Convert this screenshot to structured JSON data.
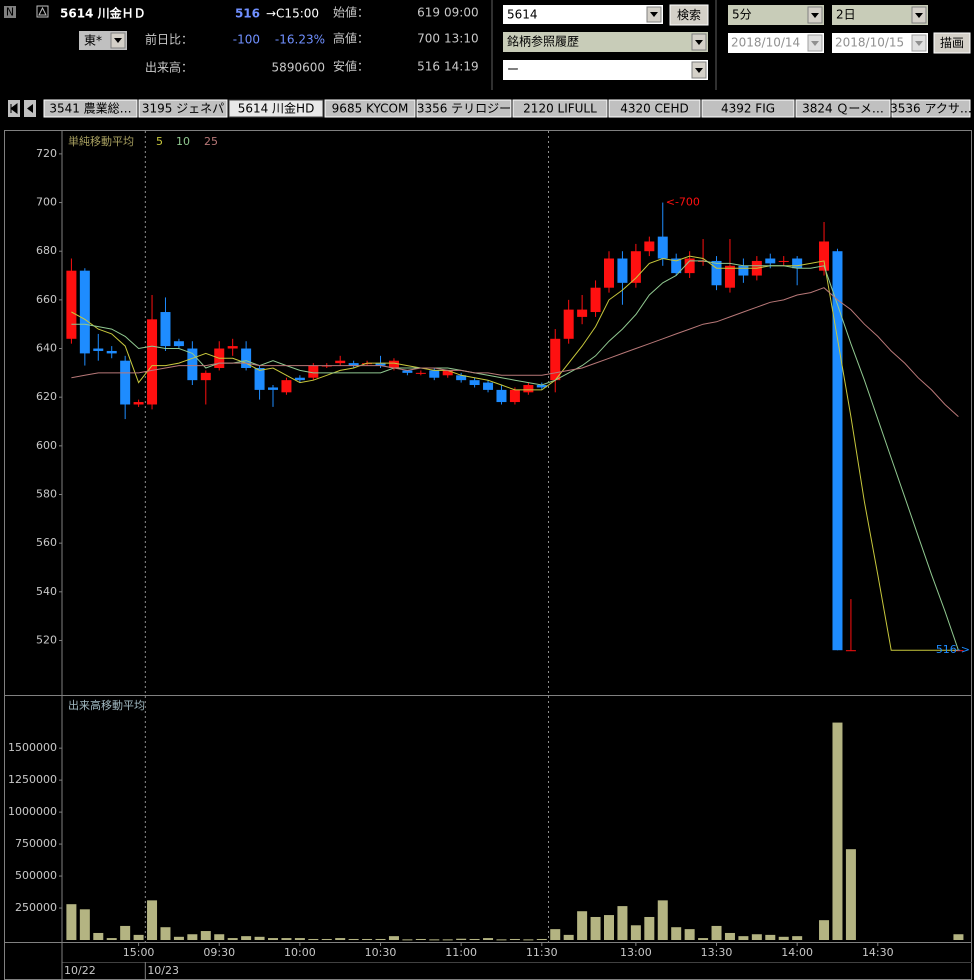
{
  "header": {
    "market_icon": "N",
    "title": "5614 川金ＨＤ",
    "price": 516,
    "price_time": "→C15:00",
    "exchange": "東*",
    "change_label": "前日比：",
    "change": -100,
    "change_pct": "-16.23%",
    "volume_label": "出来高：",
    "volume": 5890600,
    "open_label": "始値：",
    "open": 619,
    "open_time": "09:00",
    "high_label": "高値：",
    "high": 700,
    "high_time": "13:10",
    "low_label": "安値：",
    "low": 516,
    "low_time": "14:19"
  },
  "controls": {
    "code": "5614",
    "search": "検索",
    "history": "銘柄参照履歴",
    "sub": "ー",
    "interval": "5分",
    "span": "2日",
    "from": "2018/10/14",
    "to": "2018/10/15",
    "draw": "描画"
  },
  "tabs": [
    "3541 農業総…",
    "3195 ジェネパ",
    "5614 川金HD",
    "9685 KYCOM",
    "3356 テリロジー",
    "2120 LIFULL",
    "4320 CEHD",
    "4392 FIG",
    "3824 Ｑーメ…",
    "3536 アクサ…"
  ],
  "chart_data": {
    "type": "candlestick",
    "legend_title": "単純移動平均",
    "categories": [
      null,
      null,
      null,
      null,
      null,
      "15:00",
      null,
      null,
      null,
      null,
      null,
      "09:30",
      null,
      null,
      null,
      null,
      null,
      "10:00",
      null,
      null,
      null,
      null,
      null,
      "10:30",
      null,
      null,
      null,
      null,
      null,
      "11:00",
      null,
      null,
      null,
      null,
      null,
      "11:30",
      null,
      null,
      null,
      null,
      null,
      null,
      "13:00",
      null,
      null,
      null,
      null,
      null,
      "13:30",
      null,
      null,
      null,
      null,
      null,
      "14:00",
      null,
      null,
      null,
      null,
      null,
      "14:30",
      null,
      null,
      null,
      null,
      null,
      null
    ],
    "date_labels": [
      "10/22",
      "10/23"
    ],
    "open": [
      644,
      672,
      640,
      639,
      635,
      617,
      617,
      655,
      643,
      640,
      627,
      632,
      640,
      640,
      632,
      624,
      622,
      628,
      628,
      633,
      634,
      634,
      634,
      634,
      632,
      631,
      630,
      631,
      629,
      629,
      627,
      626,
      623,
      618,
      622,
      625,
      627,
      644,
      653,
      655,
      665,
      677,
      667,
      680,
      686,
      677,
      671,
      676,
      676,
      665,
      674,
      670,
      677,
      676,
      677,
      null,
      672,
      680,
      516,
      null,
      null,
      null,
      null,
      null,
      null,
      null,
      516
    ],
    "high": [
      677,
      673,
      646,
      641,
      637,
      619,
      662,
      661,
      644,
      643,
      631,
      643,
      644,
      643,
      633,
      625,
      628,
      629,
      634,
      634,
      637,
      635,
      635,
      637,
      636,
      631,
      631,
      632,
      631,
      630,
      628,
      627,
      625,
      624,
      626,
      626,
      648,
      660,
      662,
      668,
      680,
      680,
      683,
      686,
      700,
      679,
      680,
      685,
      678,
      685,
      677,
      678,
      679,
      678,
      678,
      null,
      692,
      681,
      537,
      null,
      null,
      null,
      null,
      null,
      null,
      null,
      516
    ],
    "low": [
      642,
      633,
      635,
      636,
      611,
      616,
      615,
      639,
      640,
      625,
      617,
      631,
      637,
      631,
      619,
      616,
      621,
      626,
      627,
      632,
      633,
      632,
      633,
      632,
      631,
      629,
      629,
      627,
      628,
      626,
      624,
      622,
      617,
      617,
      621,
      623,
      622,
      642,
      650,
      653,
      663,
      658,
      665,
      678,
      674,
      670,
      669,
      674,
      664,
      663,
      667,
      668,
      673,
      674,
      666,
      null,
      670,
      516,
      516,
      null,
      null,
      null,
      null,
      null,
      null,
      null,
      516
    ],
    "close": [
      672,
      638,
      639,
      638,
      617,
      618,
      652,
      641,
      641,
      627,
      630,
      640,
      641,
      632,
      623,
      623,
      627,
      627,
      633,
      633,
      635,
      633,
      634,
      633,
      635,
      630,
      630,
      628,
      631,
      627,
      625,
      623,
      618,
      623,
      625,
      624,
      644,
      656,
      656,
      665,
      677,
      667,
      680,
      684,
      677,
      671,
      677,
      676,
      666,
      674,
      670,
      676,
      675,
      676,
      673,
      null,
      684,
      516,
      516,
      null,
      null,
      null,
      null,
      null,
      null,
      null,
      516
    ],
    "up_color": "#ff1010",
    "down_color": "#1e8cff",
    "ylim": [
      498,
      729
    ],
    "yticks": [
      520,
      540,
      560,
      580,
      600,
      620,
      640,
      660,
      680,
      700,
      720
    ],
    "series": [
      {
        "name": "5",
        "color": "#c8c83c",
        "values": [
          655,
          652,
          648,
          646,
          641,
          626,
          633,
          633,
          634,
          636,
          638,
          636,
          636,
          634,
          631,
          632,
          629,
          626,
          627,
          629,
          631,
          632,
          634,
          634,
          634,
          633,
          632,
          631,
          631,
          629,
          628,
          627,
          625,
          623,
          623,
          623,
          627,
          634,
          641,
          649,
          660,
          664,
          669,
          675,
          677,
          676,
          678,
          677,
          673,
          673,
          673,
          673,
          674,
          674,
          674,
          675,
          676,
          644,
          612,
          577,
          547,
          516,
          516,
          516,
          516,
          516,
          516
        ]
      },
      {
        "name": "10",
        "color": "#90c890",
        "values": [
          650,
          650,
          649,
          648,
          645,
          640,
          641,
          640,
          640,
          638,
          632,
          634,
          634,
          635,
          633,
          635,
          633,
          631,
          630,
          630,
          630,
          630,
          630,
          630,
          632,
          632,
          632,
          632,
          632,
          631,
          630,
          629,
          628,
          627,
          626,
          625,
          627,
          630,
          633,
          637,
          643,
          648,
          654,
          662,
          667,
          670,
          676,
          676,
          675,
          675,
          674,
          674,
          674,
          674,
          673,
          673,
          674,
          658,
          642,
          627,
          611,
          595,
          579,
          563,
          547,
          532,
          516
        ]
      },
      {
        "name": "25",
        "color": "#b87878",
        "values": [
          628,
          629,
          630,
          630,
          630,
          630,
          631,
          632,
          633,
          633,
          633,
          634,
          634,
          634,
          633,
          633,
          633,
          633,
          633,
          633,
          633,
          633,
          633,
          633,
          632,
          631,
          632,
          632,
          631,
          631,
          630,
          630,
          629,
          629,
          629,
          629,
          630,
          631,
          632,
          634,
          636,
          638,
          640,
          642,
          644,
          646,
          648,
          650,
          651,
          653,
          655,
          657,
          659,
          660,
          662,
          663,
          665,
          660,
          656,
          650,
          645,
          639,
          634,
          628,
          623,
          617,
          612
        ]
      }
    ],
    "annotations": [
      "<-700",
      "516->"
    ],
    "volume": {
      "title": "出来高移動平均",
      "color": "#b4b482",
      "ylim": [
        0,
        1900000
      ],
      "yticks": [
        250000,
        500000,
        750000,
        1000000,
        1250000,
        1500000
      ],
      "values": [
        280000,
        240000,
        55000,
        15000,
        110000,
        40000,
        310000,
        100000,
        25000,
        45000,
        70000,
        45000,
        15000,
        30000,
        25000,
        15000,
        15000,
        15000,
        8000,
        8000,
        15000,
        8000,
        8000,
        8000,
        30000,
        5000,
        8000,
        5000,
        5000,
        10000,
        8000,
        15000,
        5000,
        8000,
        5000,
        8000,
        85000,
        40000,
        225000,
        180000,
        195000,
        265000,
        115000,
        180000,
        310000,
        100000,
        85000,
        15000,
        110000,
        55000,
        30000,
        45000,
        40000,
        25000,
        30000,
        null,
        155000,
        1700000,
        710000,
        null,
        null,
        null,
        null,
        null,
        null,
        null,
        45000
      ]
    }
  }
}
